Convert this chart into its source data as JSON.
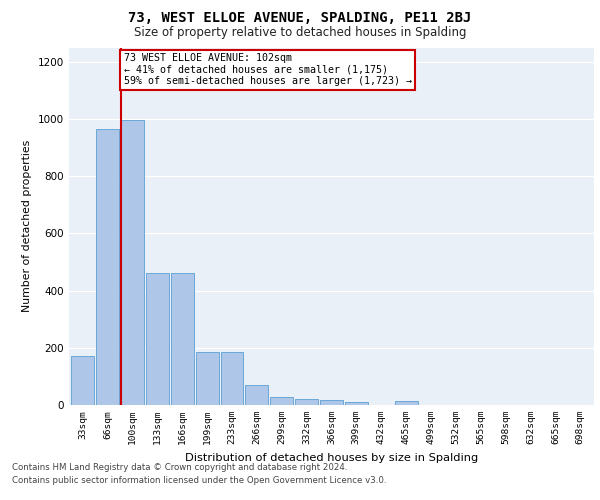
{
  "title1": "73, WEST ELLOE AVENUE, SPALDING, PE11 2BJ",
  "title2": "Size of property relative to detached houses in Spalding",
  "xlabel": "Distribution of detached houses by size in Spalding",
  "ylabel": "Number of detached properties",
  "categories": [
    "33sqm",
    "66sqm",
    "100sqm",
    "133sqm",
    "166sqm",
    "199sqm",
    "233sqm",
    "266sqm",
    "299sqm",
    "332sqm",
    "366sqm",
    "399sqm",
    "432sqm",
    "465sqm",
    "499sqm",
    "532sqm",
    "565sqm",
    "598sqm",
    "632sqm",
    "665sqm",
    "698sqm"
  ],
  "values": [
    170,
    965,
    995,
    462,
    462,
    185,
    185,
    70,
    27,
    22,
    18,
    12,
    0,
    14,
    0,
    0,
    0,
    0,
    0,
    0,
    0
  ],
  "bar_color": "#aec6e8",
  "bar_edgecolor": "#5a9fd4",
  "annotation_text": "73 WEST ELLOE AVENUE: 102sqm\n← 41% of detached houses are smaller (1,175)\n59% of semi-detached houses are larger (1,723) →",
  "vline_color": "#cc0000",
  "box_edgecolor": "#cc0000",
  "footnote1": "Contains HM Land Registry data © Crown copyright and database right 2024.",
  "footnote2": "Contains public sector information licensed under the Open Government Licence v3.0.",
  "ylim": [
    0,
    1250
  ],
  "yticks": [
    0,
    200,
    400,
    600,
    800,
    1000,
    1200
  ],
  "bg_color": "#eaf0f8",
  "fig_bg_color": "#ffffff",
  "property_bin_index": 2
}
